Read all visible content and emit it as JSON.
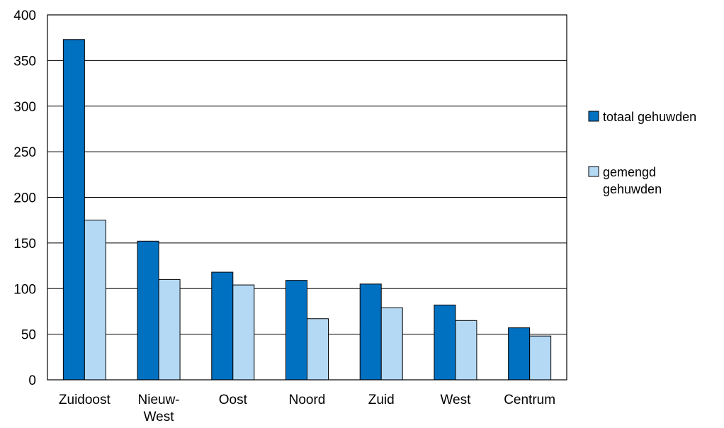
{
  "chart_data": {
    "type": "bar",
    "categories": [
      "Zuidoost",
      "Nieuw-West",
      "Oost",
      "Noord",
      "Zuid",
      "West",
      "Centrum"
    ],
    "category_lines": [
      [
        "Zuidoost"
      ],
      [
        "Nieuw-",
        "West"
      ],
      [
        "Oost"
      ],
      [
        "Noord"
      ],
      [
        "Zuid"
      ],
      [
        "West"
      ],
      [
        "Centrum"
      ]
    ],
    "series": [
      {
        "name": "totaal gehuwden",
        "name_lines": [
          "totaal gehuwden"
        ],
        "color": "#0070C0",
        "values": [
          373,
          152,
          118,
          109,
          105,
          82,
          57
        ]
      },
      {
        "name": "gemengd gehuwden",
        "name_lines": [
          "gemengd",
          "gehuwden"
        ],
        "color": "#B4D9F5",
        "values": [
          175,
          110,
          104,
          67,
          79,
          65,
          48
        ]
      }
    ],
    "ylim": [
      0,
      400
    ],
    "yticks": [
      0,
      50,
      100,
      150,
      200,
      250,
      300,
      350,
      400
    ],
    "grid": true,
    "legend_position": "right",
    "title": "",
    "xlabel": "",
    "ylabel": ""
  }
}
